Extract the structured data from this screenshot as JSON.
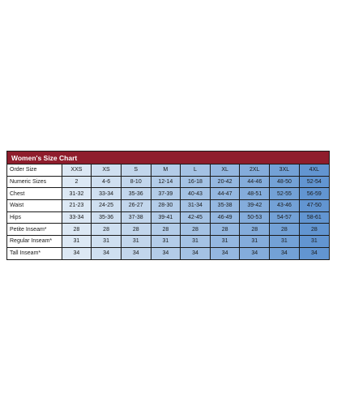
{
  "chart": {
    "title": "Women's Size Chart",
    "title_bg": "#8f1d2c",
    "header_label": "Order Size",
    "sizes": [
      "XXS",
      "XS",
      "S",
      "M",
      "L",
      "XL",
      "2XL",
      "3XL",
      "4XL"
    ],
    "column_colors": [
      "#dce8f4",
      "#cfdff0",
      "#c2d6ec",
      "#b3cce8",
      "#a4c2e4",
      "#94b7e0",
      "#84acdb",
      "#73a1d6",
      "#6295d1"
    ],
    "rows": [
      {
        "label": "Numeric Sizes",
        "values": [
          "2",
          "4-6",
          "8-10",
          "12-14",
          "16-18",
          "20-42",
          "44-46",
          "48-50",
          "52-54"
        ]
      },
      {
        "label": "Chest",
        "values": [
          "31-32",
          "33-34",
          "35-36",
          "37-39",
          "40-43",
          "44-47",
          "48-51",
          "52-55",
          "56-59"
        ]
      },
      {
        "label": "Waist",
        "values": [
          "21-23",
          "24-25",
          "26-27",
          "28-30",
          "31-34",
          "35-38",
          "39-42",
          "43-46",
          "47-50"
        ]
      },
      {
        "label": "Hips",
        "values": [
          "33-34",
          "35-36",
          "37-38",
          "39-41",
          "42-45",
          "46-49",
          "50-53",
          "54-57",
          "58-61"
        ]
      },
      {
        "label": "Petite Inseam*",
        "values": [
          "28",
          "28",
          "28",
          "28",
          "28",
          "28",
          "28",
          "28",
          "28"
        ]
      },
      {
        "label": "Regular Inseam*",
        "values": [
          "31",
          "31",
          "31",
          "31",
          "31",
          "31",
          "31",
          "31",
          "31"
        ]
      },
      {
        "label": "Tall Inseam*",
        "values": [
          "34",
          "34",
          "34",
          "34",
          "34",
          "34",
          "34",
          "34",
          "34"
        ]
      }
    ]
  }
}
